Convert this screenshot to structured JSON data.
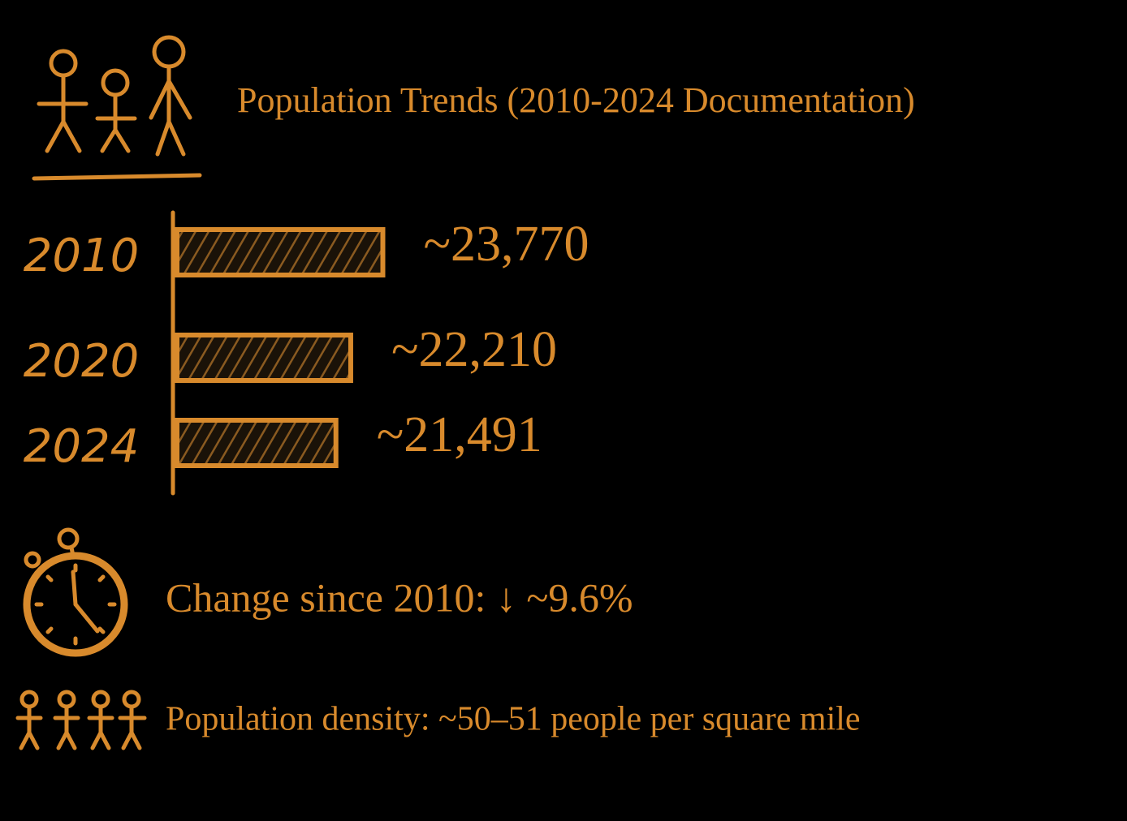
{
  "chart_data": {
    "type": "bar",
    "orientation": "horizontal",
    "title": "Population Trends (2010-2024 Documentation)",
    "categories": [
      "2010",
      "2020",
      "2024"
    ],
    "values": [
      23770,
      22210,
      21491
    ],
    "value_labels": [
      "~23,770",
      "~22,210",
      "~21,491"
    ],
    "color": "#d88a2c",
    "xlim": [
      13770,
      24500
    ],
    "annotations": [
      "Change since 2010: ↓ ~9.6%",
      "Population density: ~50–51 people per square mile"
    ]
  }
}
